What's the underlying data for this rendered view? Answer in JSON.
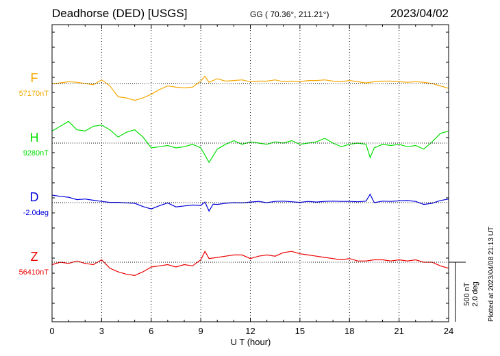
{
  "header": {
    "title": "Deadhorse (DED)  [USGS]",
    "coords": "GG ( 70.36°, 211.21°)",
    "date": "2023/04/02"
  },
  "footer": {
    "plotted": "Plotted at 2023/04/08 21:13 UT",
    "scale_nt": "500 nT",
    "scale_deg": "2.0 deg"
  },
  "colors": {
    "F": "#f5a800",
    "H": "#00e000",
    "D": "#0000dd",
    "Z": "#ee0000"
  },
  "chart_data": {
    "type": "line",
    "xlabel": "U T (hour)",
    "xlim": [
      0,
      24
    ],
    "xticks": [
      0,
      3,
      6,
      9,
      12,
      15,
      18,
      21,
      24
    ],
    "grid": true,
    "scale_note": "500 nT / 2.0 deg per 88 px",
    "series": [
      {
        "name": "F",
        "baseline_label": "57170nT",
        "unit": "nT",
        "x": [
          0,
          0.5,
          1,
          1.5,
          2,
          2.5,
          3,
          3.5,
          4,
          4.5,
          5,
          5.5,
          6,
          6.5,
          7,
          7.5,
          8,
          8.5,
          9,
          9.25,
          9.5,
          10,
          10.5,
          11,
          11.5,
          12,
          12.5,
          13,
          13.5,
          14,
          14.5,
          15,
          15.5,
          16,
          16.5,
          17,
          17.5,
          18,
          18.5,
          19,
          19.5,
          20,
          20.5,
          21,
          21.5,
          22,
          22.5,
          23,
          23.5,
          24
        ],
        "y": [
          57170,
          57175,
          57185,
          57180,
          57170,
          57160,
          57200,
          57150,
          57060,
          57050,
          57030,
          57050,
          57080,
          57120,
          57150,
          57140,
          57135,
          57140,
          57190,
          57230,
          57180,
          57210,
          57190,
          57195,
          57200,
          57185,
          57190,
          57190,
          57200,
          57185,
          57190,
          57185,
          57195,
          57195,
          57200,
          57190,
          57185,
          57195,
          57185,
          57175,
          57185,
          57190,
          57190,
          57185,
          57180,
          57185,
          57180,
          57170,
          57150,
          57130
        ]
      },
      {
        "name": "H",
        "baseline_label": "9280nT",
        "unit": "nT",
        "x": [
          0,
          0.5,
          1,
          1.5,
          2,
          2.5,
          3,
          3.5,
          4,
          4.5,
          5,
          5.5,
          6,
          6.5,
          7,
          7.5,
          8,
          8.5,
          9,
          9.25,
          9.5,
          10,
          10.5,
          11,
          11.5,
          12,
          12.5,
          13,
          13.5,
          14,
          14.5,
          15,
          15.5,
          16,
          16.5,
          17,
          17.5,
          18,
          18.5,
          19,
          19.25,
          19.5,
          20,
          20.5,
          21,
          21.5,
          22,
          22.5,
          23,
          23.5,
          24
        ],
        "y": [
          9380,
          9420,
          9460,
          9390,
          9380,
          9420,
          9430,
          9390,
          9330,
          9370,
          9390,
          9330,
          9240,
          9250,
          9260,
          9240,
          9250,
          9270,
          9240,
          9180,
          9120,
          9230,
          9270,
          9300,
          9270,
          9290,
          9280,
          9270,
          9290,
          9280,
          9300,
          9270,
          9280,
          9290,
          9320,
          9280,
          9250,
          9270,
          9280,
          9270,
          9160,
          9240,
          9270,
          9260,
          9270,
          9250,
          9260,
          9230,
          9290,
          9360,
          9380
        ]
      },
      {
        "name": "D",
        "baseline_label": "-2.0deg",
        "unit": "deg",
        "x": [
          0,
          0.5,
          1,
          1.5,
          2,
          2.5,
          3,
          3.5,
          4,
          4.5,
          5,
          5.5,
          6,
          6.5,
          7,
          7.5,
          8,
          8.5,
          9,
          9.25,
          9.5,
          9.75,
          10,
          10.5,
          11,
          11.5,
          12,
          12.5,
          13,
          13.5,
          14,
          14.5,
          15,
          15.5,
          16,
          16.5,
          17,
          17.5,
          18,
          18.5,
          19,
          19.25,
          19.5,
          20,
          20.5,
          21,
          21.5,
          22,
          22.5,
          23,
          23.5,
          24
        ],
        "y": [
          -1.75,
          -1.79,
          -1.82,
          -1.9,
          -1.88,
          -1.92,
          -1.96,
          -1.99,
          -1.99,
          -2.01,
          -2.02,
          -2.13,
          -2.21,
          -2.1,
          -2.01,
          -2.14,
          -2.11,
          -2.08,
          -2.09,
          -1.98,
          -2.28,
          -2.05,
          -2.06,
          -2.02,
          -2.0,
          -2.01,
          -1.98,
          -1.96,
          -2.0,
          -1.96,
          -1.95,
          -1.97,
          -1.99,
          -1.96,
          -1.98,
          -1.96,
          -1.95,
          -1.96,
          -1.96,
          -1.97,
          -1.95,
          -1.72,
          -2.0,
          -1.95,
          -1.96,
          -1.94,
          -1.93,
          -1.96,
          -2.06,
          -2.02,
          -1.93,
          -1.88
        ]
      },
      {
        "name": "Z",
        "baseline_label": "56410nT",
        "unit": "nT",
        "x": [
          0,
          0.5,
          1,
          1.5,
          2,
          2.5,
          3,
          3.5,
          4,
          4.5,
          5,
          5.5,
          6,
          6.5,
          7,
          7.5,
          8,
          8.5,
          9,
          9.25,
          9.5,
          10,
          10.5,
          11,
          11.5,
          12,
          12.5,
          13,
          13.5,
          14,
          14.5,
          15,
          15.5,
          16,
          16.5,
          17,
          17.5,
          18,
          18.5,
          19,
          19.5,
          20,
          20.5,
          21,
          21.5,
          22,
          22.5,
          23,
          23.5,
          24
        ],
        "y": [
          56390,
          56410,
          56400,
          56420,
          56400,
          56390,
          56430,
          56360,
          56330,
          56310,
          56300,
          56330,
          56370,
          56380,
          56390,
          56370,
          56390,
          56380,
          56430,
          56500,
          56440,
          56450,
          56460,
          56470,
          56470,
          56440,
          56460,
          56470,
          56460,
          56490,
          56500,
          56480,
          56470,
          56460,
          56450,
          56440,
          56430,
          56440,
          56420,
          56420,
          56430,
          56430,
          56420,
          56430,
          56420,
          56430,
          56410,
          56410,
          56380,
          56360
        ]
      }
    ]
  }
}
